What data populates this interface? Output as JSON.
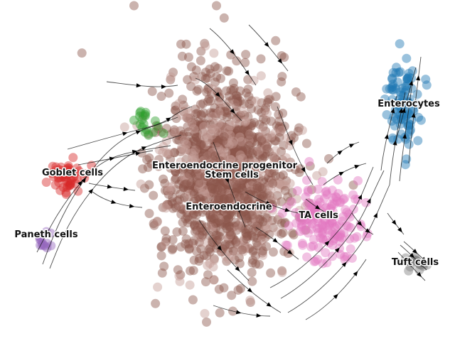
{
  "chart_data": {
    "type": "scatter",
    "title": "",
    "xlabel": "",
    "ylabel": "",
    "grid": false,
    "axes_visible": false,
    "overlay": "velocity streamlines with arrowheads",
    "clusters": [
      {
        "name": "Enteroendocrine progenitor",
        "color": "#8c564b",
        "center": [
          315,
          235
        ],
        "spread": [
          85,
          120
        ],
        "count": 900
      },
      {
        "name": "Stem cells",
        "color": "#c49c94",
        "center": [
          320,
          250
        ],
        "spread": [
          90,
          115
        ],
        "count": 260
      },
      {
        "name": "Enteroendocrine",
        "color": "#8c564b",
        "center": [
          322,
          300
        ],
        "spread": [
          70,
          90
        ],
        "count": 200
      },
      {
        "name": "TA cells",
        "color": "#e377c2",
        "center": [
          460,
          310
        ],
        "spread": [
          55,
          50
        ],
        "count": 160
      },
      {
        "name": "Enterocytes",
        "color": "#1f77b4",
        "center": [
          568,
          150
        ],
        "spread": [
          20,
          55
        ],
        "count": 95
      },
      {
        "name": "Goblet cells",
        "color": "#d62728",
        "center": [
          97,
          248
        ],
        "spread": [
          22,
          22
        ],
        "count": 55
      },
      {
        "name": "Paneth cells",
        "color": "#9467bd",
        "center": [
          62,
          338
        ],
        "spread": [
          10,
          10
        ],
        "count": 14
      },
      {
        "name": "Tuft cells",
        "color": "#7f7f7f",
        "center": [
          583,
          372
        ],
        "spread": [
          14,
          10
        ],
        "count": 18
      },
      {
        "name": "",
        "color": "#2ca02c",
        "center": [
          205,
          175
        ],
        "spread": [
          18,
          20
        ],
        "count": 18
      }
    ],
    "labels": [
      {
        "text": "Goblet cells"
      },
      {
        "text": "Paneth cells"
      },
      {
        "text": "Enteroendocrine progenitor"
      },
      {
        "text": "Stem cells"
      },
      {
        "text": "Enteroendocrine"
      },
      {
        "text": "TA cells"
      },
      {
        "text": "Enterocytes"
      },
      {
        "text": "Tuft cells"
      }
    ]
  }
}
